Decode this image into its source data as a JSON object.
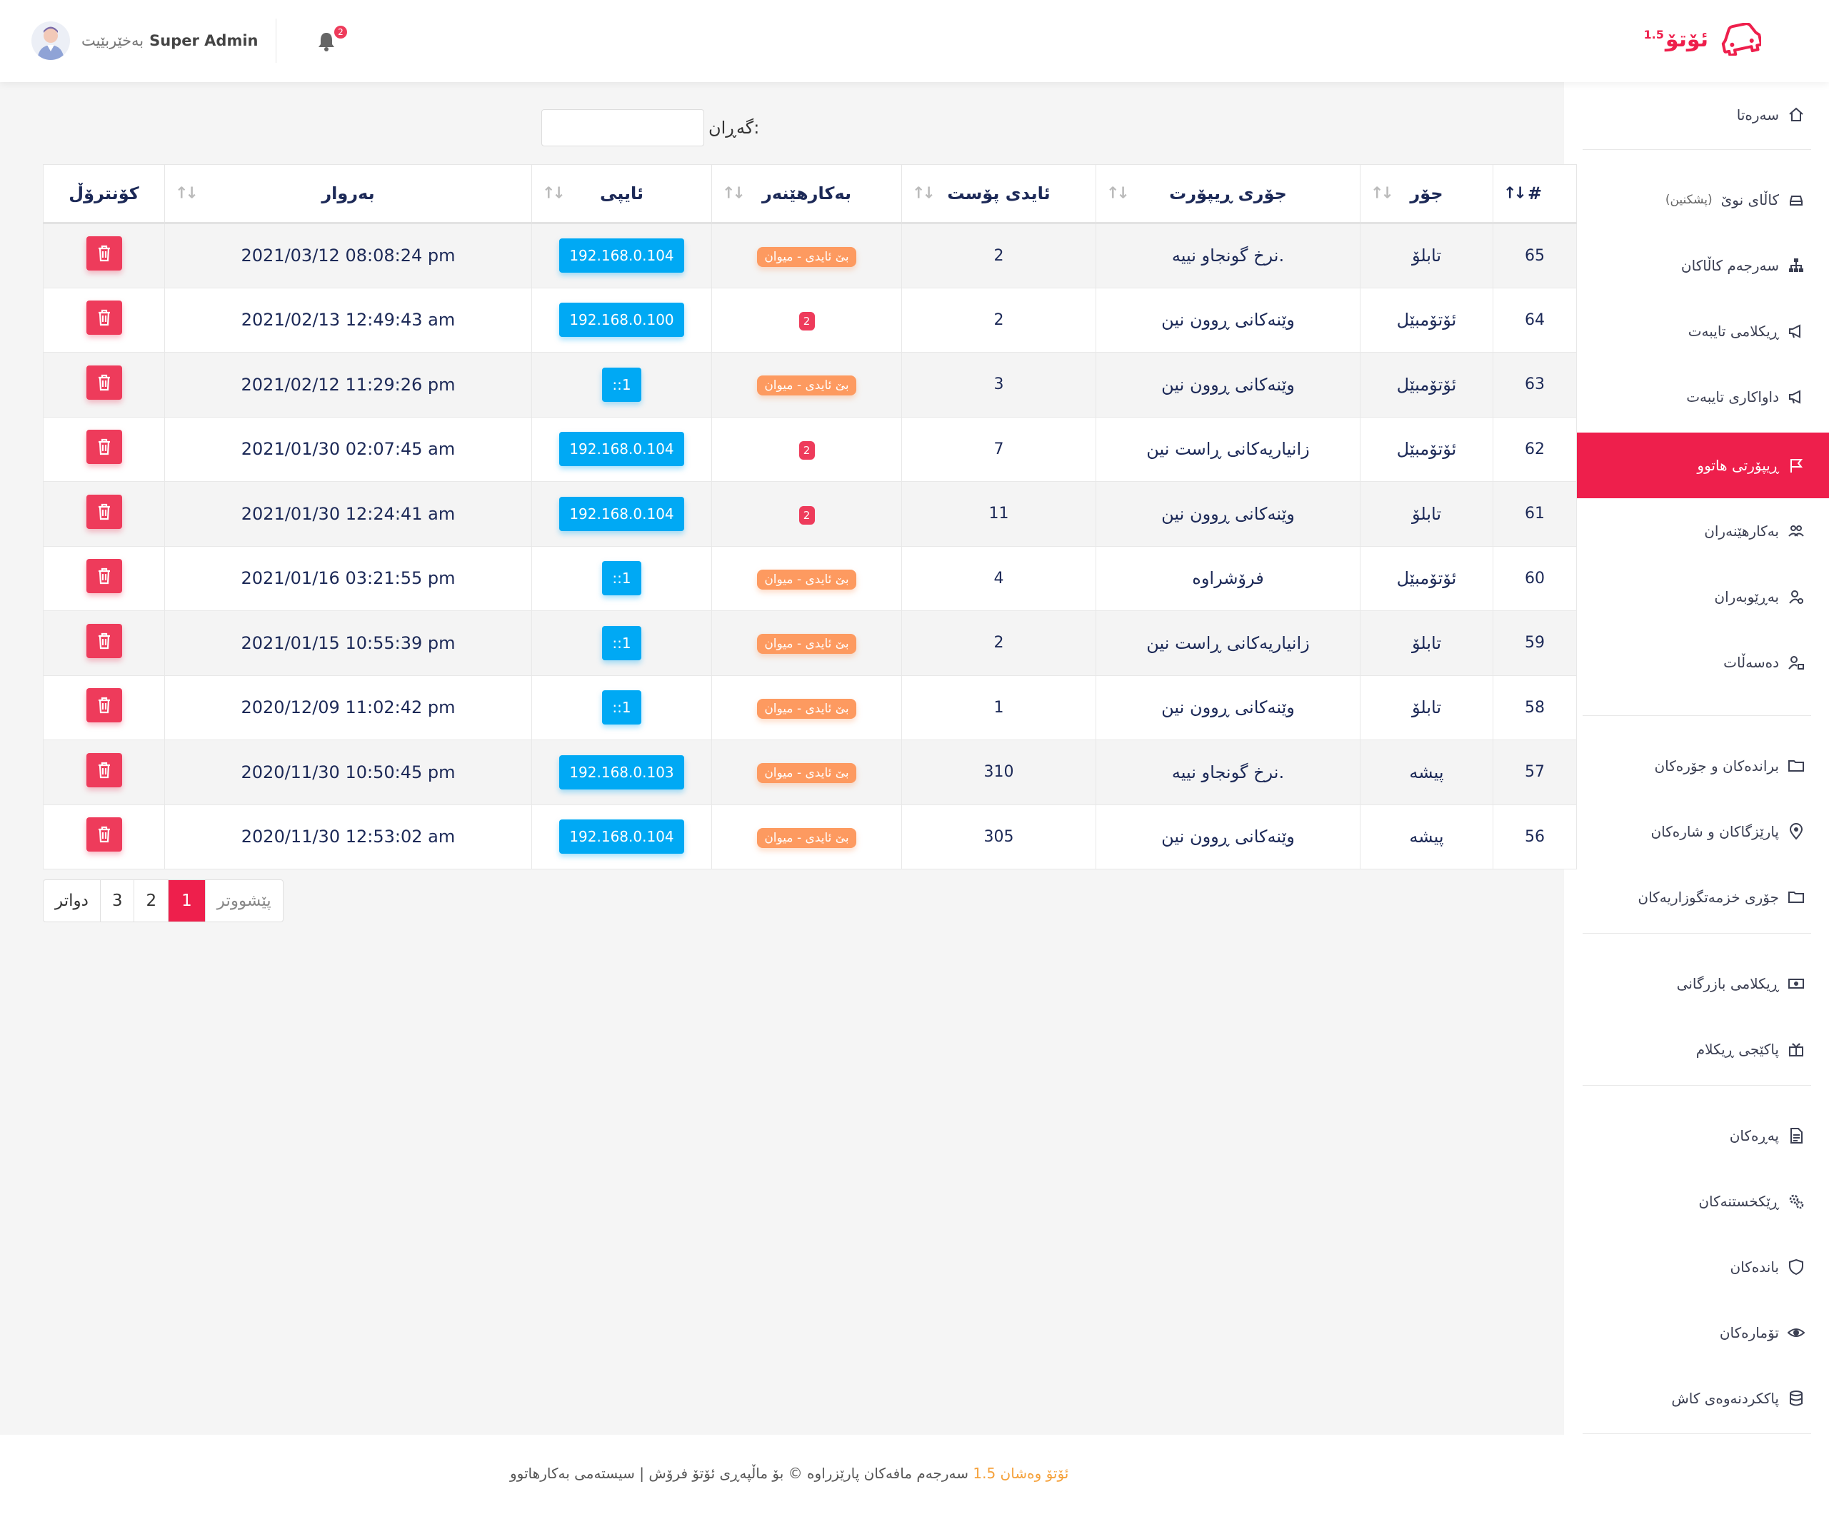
{
  "header": {
    "admin_name": "Super Admin",
    "welcome": "بەخێربێیت",
    "notification_count": "2",
    "logo_text": "ئۆتۆ",
    "logo_version": "1.5"
  },
  "sidebar": {
    "items": [
      {
        "label": "سەرەتا",
        "icon": "home-icon"
      },
      {
        "label": "کاڵای نوێ",
        "sub": "(پشکنین)",
        "icon": "car-icon"
      },
      {
        "label": "سەرجەم کاڵاکان",
        "icon": "sitemap-icon"
      },
      {
        "label": "ڕیکلامی تایبەت",
        "icon": "megaphone-icon"
      },
      {
        "label": "داواکاری تایبەت",
        "icon": "megaphone-icon"
      },
      {
        "label": "ڕیپۆرتی هاتوو",
        "icon": "flag-icon",
        "active": true
      },
      {
        "label": "بەکارهێنەران",
        "icon": "users-icon"
      },
      {
        "label": "بەڕێوبەران",
        "icon": "user-gear-icon"
      },
      {
        "label": "دەسەڵات",
        "icon": "user-lock-icon"
      },
      {
        "label": "براندەکان و جۆرەکان",
        "icon": "folder-icon"
      },
      {
        "label": "پارێزگاکان و شارەکان",
        "icon": "map-marker-icon"
      },
      {
        "label": "جۆری خزمەتگوزاریەکان",
        "icon": "folder-icon"
      },
      {
        "label": "ڕیکلامی بازرگانی",
        "icon": "money-icon"
      },
      {
        "label": "پاکێجی ڕیکلام",
        "icon": "gift-icon"
      },
      {
        "label": "پەڕەکان",
        "icon": "file-icon"
      },
      {
        "label": "ڕێکخستنەکان",
        "icon": "gears-icon"
      },
      {
        "label": "باندەکان",
        "icon": "shield-icon"
      },
      {
        "label": "تۆمارەکان",
        "icon": "eye-icon"
      },
      {
        "label": "پاککردنەوەی کاش",
        "icon": "database-icon"
      }
    ]
  },
  "search": {
    "label": "گەڕان:",
    "value": ""
  },
  "table": {
    "headers": {
      "num": "#",
      "type": "جۆر",
      "report_type": "جۆری ڕیپۆرت",
      "post_id": "ئایدی پۆست",
      "user": "بەکارهێنەر",
      "ip": "ئایپی",
      "date": "بەروار",
      "control": "کۆنترۆڵ"
    },
    "guest_label": "بێ ئایدی - میوان",
    "rows": [
      {
        "num": "65",
        "type": "تابلۆ",
        "report": "نرخ گونجاو نییە.",
        "post_id": "2",
        "user": "guest",
        "ip": "192.168.0.104",
        "date": "2021/03/12 08:08:24 pm"
      },
      {
        "num": "64",
        "type": "ئۆتۆمبێل",
        "report": "وێنەکانی ڕوون نین",
        "post_id": "2",
        "user": "2",
        "ip": "192.168.0.100",
        "date": "2021/02/13 12:49:43 am"
      },
      {
        "num": "63",
        "type": "ئۆتۆمبێل",
        "report": "وێنەکانی ڕوون نین",
        "post_id": "3",
        "user": "guest",
        "ip": "::1",
        "date": "2021/02/12 11:29:26 pm"
      },
      {
        "num": "62",
        "type": "ئۆتۆمبێل",
        "report": "زانیاریەکانی ڕاست نین",
        "post_id": "7",
        "user": "2",
        "ip": "192.168.0.104",
        "date": "2021/01/30 02:07:45 am"
      },
      {
        "num": "61",
        "type": "تابلۆ",
        "report": "وێنەکانی ڕوون نین",
        "post_id": "11",
        "user": "2",
        "ip": "192.168.0.104",
        "date": "2021/01/30 12:24:41 am"
      },
      {
        "num": "60",
        "type": "ئۆتۆمبێل",
        "report": "فرۆشراوە",
        "post_id": "4",
        "user": "guest",
        "ip": "::1",
        "date": "2021/01/16 03:21:55 pm"
      },
      {
        "num": "59",
        "type": "تابلۆ",
        "report": "زانیاریەکانی ڕاست نین",
        "post_id": "2",
        "user": "guest",
        "ip": "::1",
        "date": "2021/01/15 10:55:39 pm"
      },
      {
        "num": "58",
        "type": "تابلۆ",
        "report": "وێنەکانی ڕوون نین",
        "post_id": "1",
        "user": "guest",
        "ip": "::1",
        "date": "2020/12/09 11:02:42 pm"
      },
      {
        "num": "57",
        "type": "پیشە",
        "report": "نرخ گونجاو نییە.",
        "post_id": "310",
        "user": "guest",
        "ip": "192.168.0.103",
        "date": "2020/11/30 10:50:45 pm"
      },
      {
        "num": "56",
        "type": "پیشە",
        "report": "وێنەکانی ڕوون نین",
        "post_id": "305",
        "user": "guest",
        "ip": "192.168.0.104",
        "date": "2020/11/30 12:53:02 am"
      }
    ]
  },
  "pagination": {
    "next": "دواتر",
    "pages": [
      "3",
      "2",
      "1"
    ],
    "current": "1",
    "prev": "پێشووتر"
  },
  "footer": {
    "text": "سەرجەم مافەکان پارێزراوە © بۆ ماڵپەڕی ئۆتۆ فرۆش | سیستەمی بەکارهاتوو",
    "brand": "ئۆتۆ وەشان 1.5"
  },
  "colors": {
    "accent": "#ee1f4c",
    "ip_badge": "#00a9f4",
    "guest_badge": "#fd9a60",
    "delete": "#ee3b5b"
  }
}
